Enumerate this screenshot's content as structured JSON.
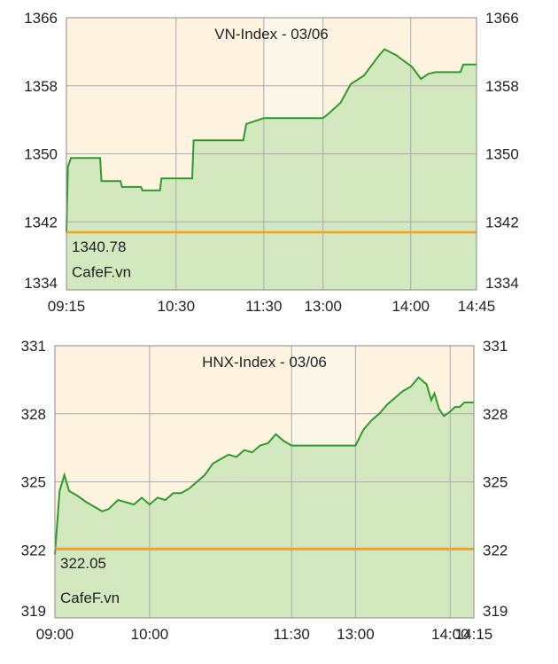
{
  "chart_data": [
    {
      "type": "area",
      "title": "VN-Index - 03/06",
      "color": "#2e9a2e",
      "fill": "#cbe5b8",
      "grid": true,
      "x": [
        "09:15",
        "09:16",
        "09:18",
        "09:38",
        "09:39",
        "09:52",
        "09:53",
        "10:06",
        "10:07",
        "10:19",
        "10:20",
        "10:41",
        "10:42",
        "11:16",
        "11:18",
        "11:30",
        "13:00",
        "13:03",
        "13:12",
        "13:19",
        "13:28",
        "13:38",
        "13:42",
        "13:50",
        "14:01",
        "14:07",
        "14:12",
        "14:17",
        "14:34",
        "14:36",
        "14:45"
      ],
      "values": [
        1340.8,
        1348.5,
        1349.5,
        1349.5,
        1346.8,
        1346.8,
        1346.1,
        1346.1,
        1345.7,
        1345.7,
        1347.1,
        1347.1,
        1351.6,
        1351.6,
        1353.5,
        1354.2,
        1354.2,
        1354.6,
        1356.0,
        1358.2,
        1359.2,
        1361.5,
        1362.3,
        1361.6,
        1360.2,
        1358.8,
        1359.4,
        1359.6,
        1359.6,
        1360.5,
        1360.5
      ],
      "xticks": [
        "09:15",
        "10:30",
        "11:30",
        "13:00",
        "14:00",
        "14:45"
      ],
      "ylim": [
        1334,
        1366
      ],
      "yticks": [
        1334,
        1342,
        1350,
        1358,
        1366
      ],
      "reference_value": 1340.78,
      "reference_color": "#f5a21b",
      "shaded_range": [
        "11:30",
        "13:00"
      ],
      "annotation": "CafeF.vn"
    },
    {
      "type": "area",
      "title": "HNX-Index - 03/06",
      "color": "#2e9a2e",
      "fill": "#cbe5b8",
      "grid": true,
      "x": [
        "09:00",
        "09:03",
        "09:06",
        "09:09",
        "09:14",
        "09:20",
        "09:25",
        "09:30",
        "09:34",
        "09:40",
        "09:45",
        "09:50",
        "09:55",
        "10:00",
        "10:05",
        "10:10",
        "10:15",
        "10:20",
        "10:25",
        "10:30",
        "10:35",
        "10:40",
        "10:45",
        "10:50",
        "10:55",
        "11:00",
        "11:05",
        "11:10",
        "11:15",
        "11:20",
        "11:25",
        "11:30",
        "13:00",
        "13:05",
        "13:10",
        "13:15",
        "13:20",
        "13:25",
        "13:30",
        "13:35",
        "13:40",
        "13:45",
        "13:48",
        "13:50",
        "13:53",
        "13:56",
        "14:00",
        "14:03",
        "14:06",
        "14:09",
        "14:12",
        "14:15"
      ],
      "values": [
        321.8,
        324.6,
        325.3,
        324.6,
        324.4,
        324.1,
        323.9,
        323.7,
        323.8,
        324.2,
        324.1,
        324.0,
        324.3,
        324.0,
        324.3,
        324.2,
        324.5,
        324.5,
        324.7,
        325.0,
        325.3,
        325.8,
        326.0,
        326.2,
        326.1,
        326.4,
        326.3,
        326.6,
        326.7,
        327.1,
        326.8,
        326.6,
        326.6,
        327.3,
        327.7,
        328.0,
        328.4,
        328.7,
        329.0,
        329.2,
        329.6,
        329.3,
        328.6,
        328.9,
        328.2,
        327.9,
        328.1,
        328.3,
        328.3,
        328.5,
        328.5,
        328.5
      ],
      "xticks": [
        "09:00",
        "10:00",
        "11:30",
        "13:00",
        "14:00",
        "14:15"
      ],
      "ylim": [
        319,
        331
      ],
      "yticks": [
        319,
        322,
        325,
        328,
        331
      ],
      "reference_value": 322.05,
      "reference_color": "#f5a21b",
      "shaded_range": [
        "11:30",
        "13:00"
      ],
      "annotation": "CafeF.vn"
    }
  ]
}
